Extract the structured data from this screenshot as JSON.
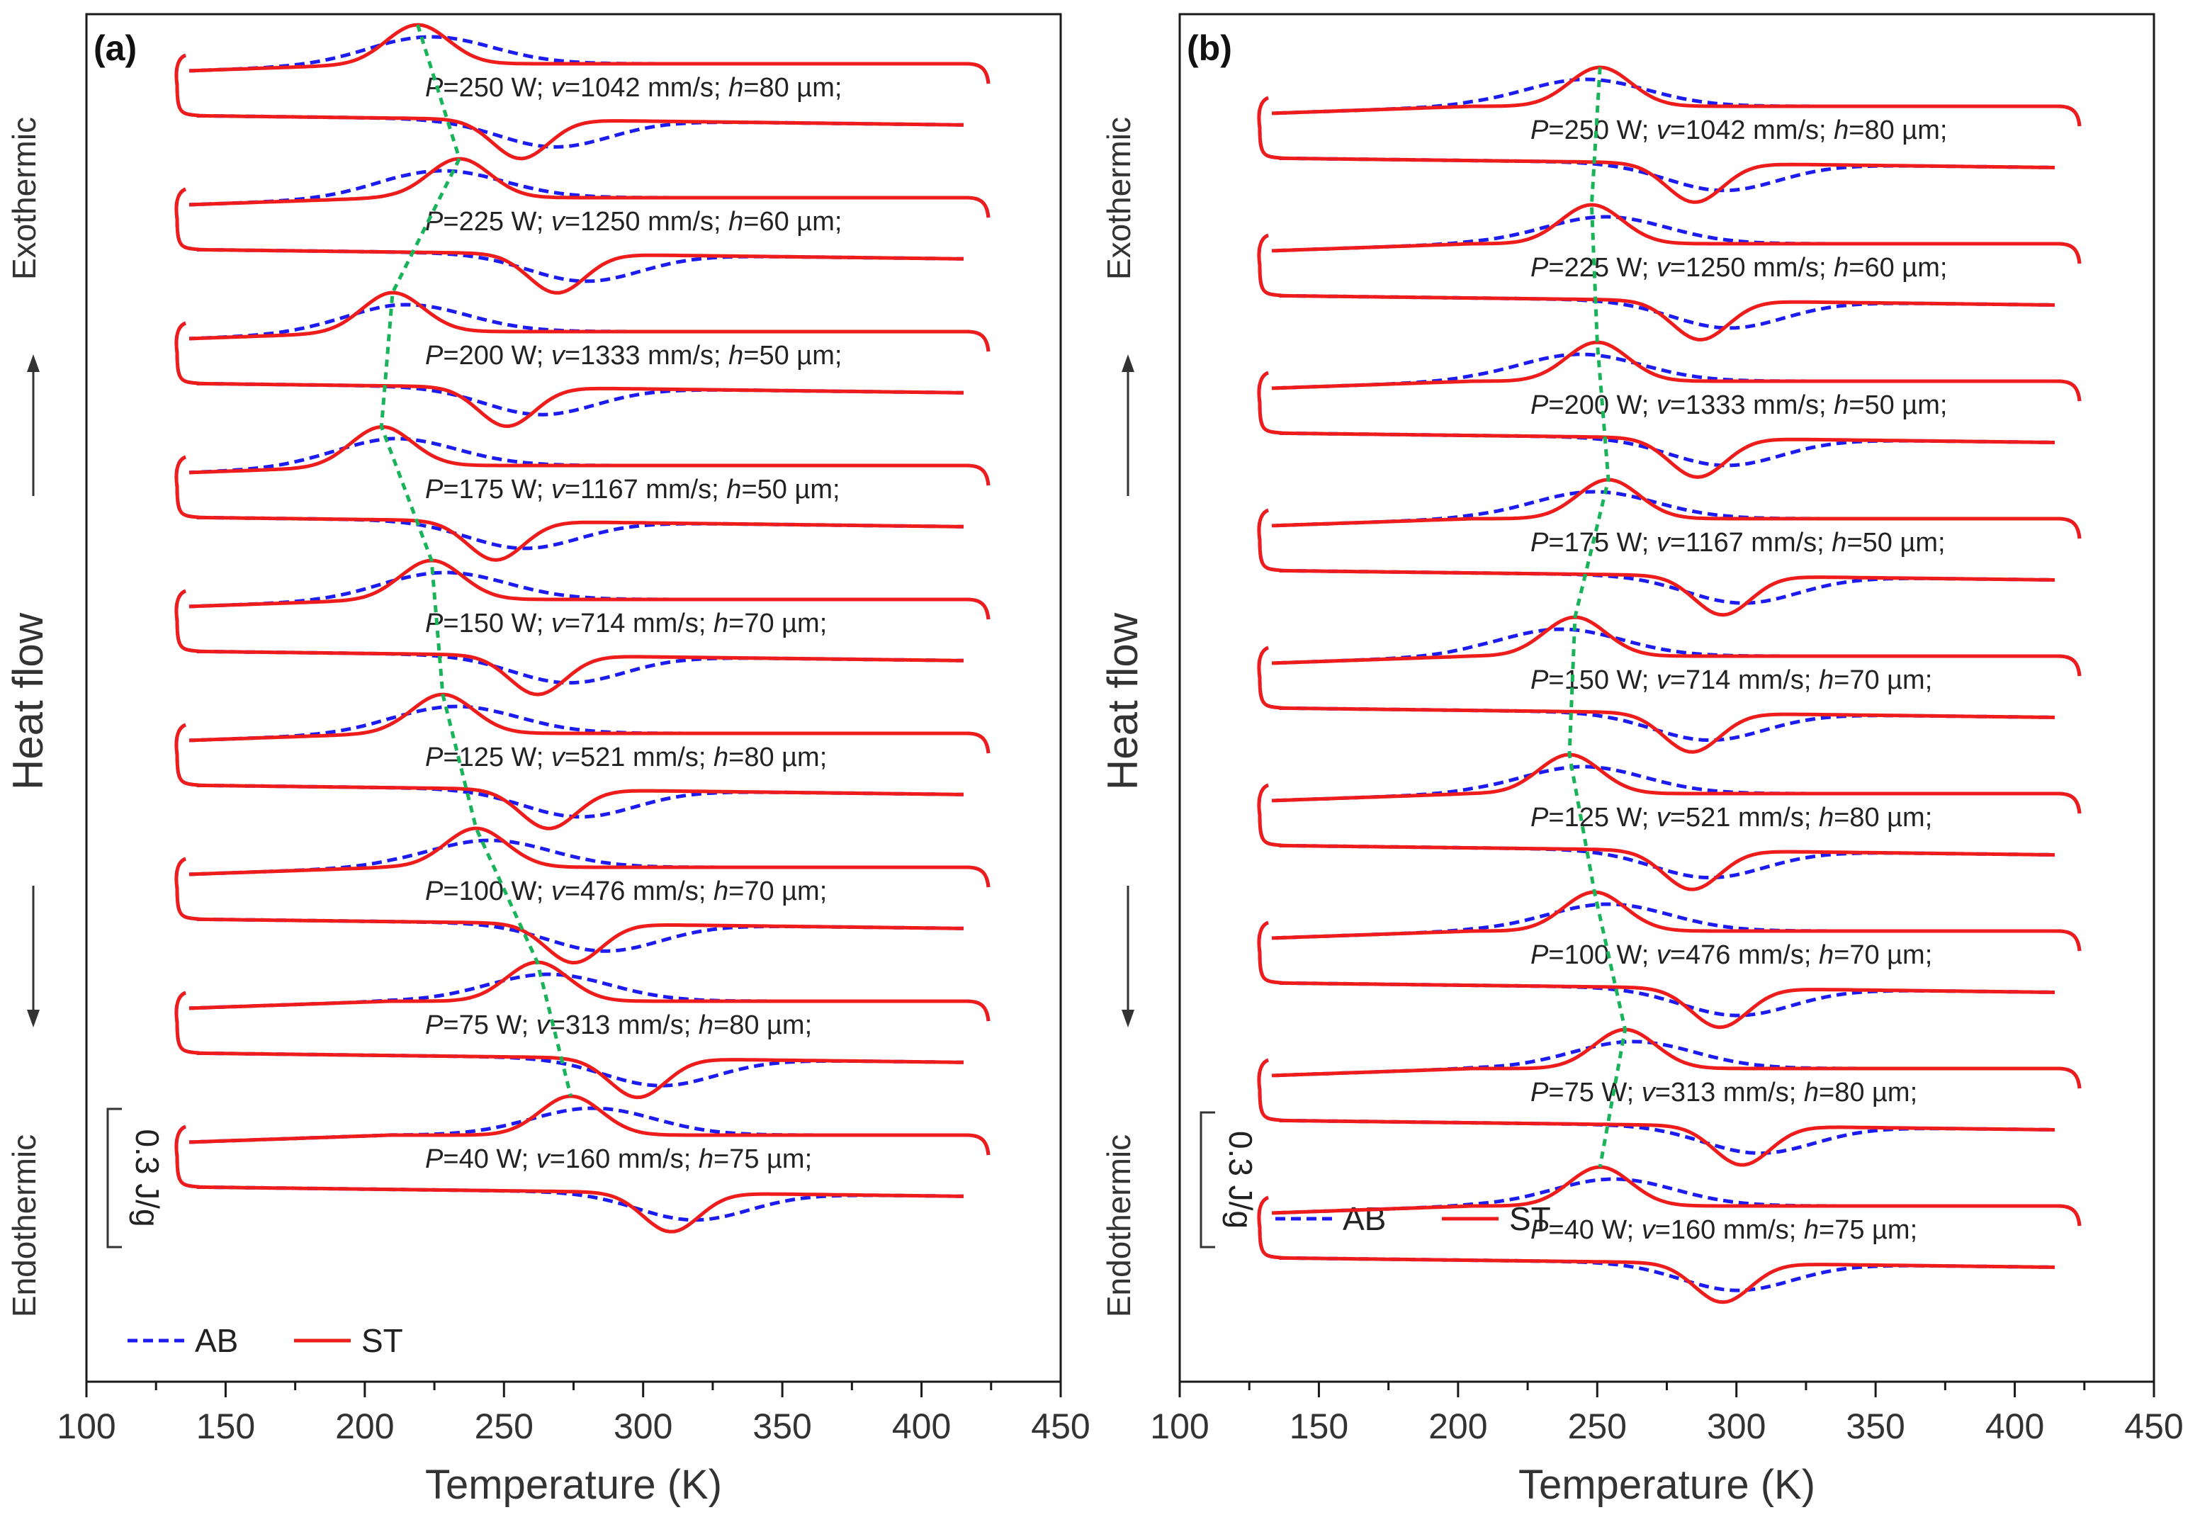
{
  "chart_data": [
    {
      "panel_label": "(a)",
      "type": "line",
      "xlabel": "Temperature (K)",
      "xlim": [
        100,
        450
      ],
      "xticks": [
        "100",
        "150",
        "200",
        "250",
        "300",
        "350",
        "400",
        "450"
      ],
      "ylabel": "Heat flow",
      "ylabel_top": "Exothermic",
      "ylabel_bottom": "Endothermic",
      "scale_bar_label": "0.3 J/g",
      "legend": [
        {
          "name": "AB",
          "style": "dashed",
          "color": "#1c1cf0"
        },
        {
          "name": "ST",
          "style": "solid",
          "color": "#ef1c1c"
        }
      ],
      "series": [
        {
          "P": "250",
          "v": "1042",
          "h": "80",
          "st_exo_peak_K": 219,
          "ab_exo_peak_K": 224,
          "st_endo_peak_K": 256,
          "ab_endo_peak_K": 268
        },
        {
          "P": "225",
          "v": "1250",
          "h": "60",
          "st_exo_peak_K": 234,
          "ab_exo_peak_K": 228,
          "st_endo_peak_K": 269,
          "ab_endo_peak_K": 279
        },
        {
          "P": "200",
          "v": "1333",
          "h": "50",
          "st_exo_peak_K": 210,
          "ab_exo_peak_K": 215,
          "st_endo_peak_K": 251,
          "ab_endo_peak_K": 263
        },
        {
          "P": "175",
          "v": "1167",
          "h": "50",
          "st_exo_peak_K": 206,
          "ab_exo_peak_K": 211,
          "st_endo_peak_K": 247,
          "ab_endo_peak_K": 257
        },
        {
          "P": "150",
          "v": "714",
          "h": "70",
          "st_exo_peak_K": 224,
          "ab_exo_peak_K": 229,
          "st_endo_peak_K": 262,
          "ab_endo_peak_K": 273
        },
        {
          "P": "125",
          "v": "521",
          "h": "80",
          "st_exo_peak_K": 228,
          "ab_exo_peak_K": 233,
          "st_endo_peak_K": 266,
          "ab_endo_peak_K": 277
        },
        {
          "P": "100",
          "v": "476",
          "h": "70",
          "st_exo_peak_K": 240,
          "ab_exo_peak_K": 245,
          "st_endo_peak_K": 275,
          "ab_endo_peak_K": 286
        },
        {
          "P": "75",
          "v": "313",
          "h": "80",
          "st_exo_peak_K": 262,
          "ab_exo_peak_K": 266,
          "st_endo_peak_K": 298,
          "ab_endo_peak_K": 306
        },
        {
          "P": "40",
          "v": "160",
          "h": "75",
          "st_exo_peak_K": 274,
          "ab_exo_peak_K": 282,
          "st_endo_peak_K": 310,
          "ab_endo_peak_K": 318
        }
      ]
    },
    {
      "panel_label": "(b)",
      "type": "line",
      "xlabel": "Temperature (K)",
      "xlim": [
        100,
        450
      ],
      "xticks": [
        "100",
        "150",
        "200",
        "250",
        "300",
        "350",
        "400",
        "450"
      ],
      "ylabel": "Heat flow",
      "ylabel_top": "Exothermic",
      "ylabel_bottom": "Endothermic",
      "scale_bar_label": "0.3 J/g",
      "legend": [
        {
          "name": "AB",
          "style": "dashed",
          "color": "#1c1cf0"
        },
        {
          "name": "ST",
          "style": "solid",
          "color": "#ef1c1c"
        }
      ],
      "series": [
        {
          "P": "250",
          "v": "1042",
          "h": "80",
          "st_exo_peak_K": 251,
          "ab_exo_peak_K": 246,
          "st_endo_peak_K": 285,
          "ab_endo_peak_K": 295
        },
        {
          "P": "225",
          "v": "1250",
          "h": "60",
          "st_exo_peak_K": 248,
          "ab_exo_peak_K": 253,
          "st_endo_peak_K": 287,
          "ab_endo_peak_K": 297
        },
        {
          "P": "200",
          "v": "1333",
          "h": "50",
          "st_exo_peak_K": 250,
          "ab_exo_peak_K": 244,
          "st_endo_peak_K": 286,
          "ab_endo_peak_K": 296
        },
        {
          "P": "175",
          "v": "1167",
          "h": "50",
          "st_exo_peak_K": 254,
          "ab_exo_peak_K": 249,
          "st_endo_peak_K": 295,
          "ab_endo_peak_K": 302
        },
        {
          "P": "150",
          "v": "714",
          "h": "70",
          "st_exo_peak_K": 242,
          "ab_exo_peak_K": 237,
          "st_endo_peak_K": 284,
          "ab_endo_peak_K": 290
        },
        {
          "P": "125",
          "v": "521",
          "h": "80",
          "st_exo_peak_K": 240,
          "ab_exo_peak_K": 245,
          "st_endo_peak_K": 284,
          "ab_endo_peak_K": 290
        },
        {
          "P": "100",
          "v": "476",
          "h": "70",
          "st_exo_peak_K": 249,
          "ab_exo_peak_K": 254,
          "st_endo_peak_K": 294,
          "ab_endo_peak_K": 300
        },
        {
          "P": "75",
          "v": "313",
          "h": "80",
          "st_exo_peak_K": 260,
          "ab_exo_peak_K": 263,
          "st_endo_peak_K": 302,
          "ab_endo_peak_K": 308
        },
        {
          "P": "40",
          "v": "160",
          "h": "75",
          "st_exo_peak_K": 251,
          "ab_exo_peak_K": 256,
          "st_endo_peak_K": 295,
          "ab_endo_peak_K": 300
        }
      ]
    }
  ]
}
